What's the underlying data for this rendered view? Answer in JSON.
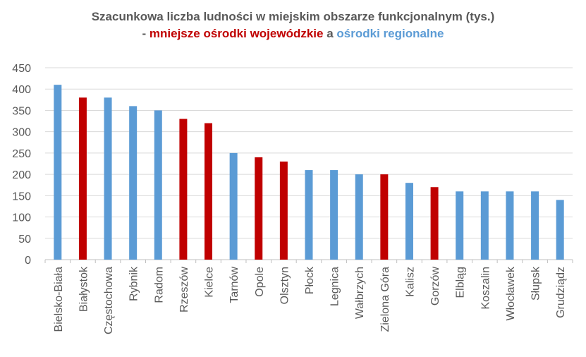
{
  "chart_data": {
    "type": "bar",
    "title": "Szacunkowa liczba ludności w miejskim obszarze funkcjonalnym (tys.)",
    "subtitle": {
      "prefix": "- ",
      "red_text": "mniejsze ośrodki wojewódzkie",
      "connector": " a ",
      "blue_text": "ośrodki regionalne"
    },
    "colors": {
      "red": "#C00000",
      "blue": "#5B9BD5"
    },
    "categories": [
      "Bielsko-Biała",
      "Białystok",
      "Częstochowa",
      "Rybnik",
      "Radom",
      "Rzeszów",
      "Kielce",
      "Tarnów",
      "Opole",
      "Olsztyn",
      "Płock",
      "Legnica",
      "Wałbrzych",
      "Zielona Góra",
      "Kalisz",
      "Gorzów",
      "Elbląg",
      "Koszalin",
      "Włocławek",
      "Słupsk",
      "Grudziądz"
    ],
    "values": [
      410,
      380,
      380,
      360,
      350,
      330,
      320,
      250,
      240,
      230,
      210,
      210,
      200,
      200,
      180,
      170,
      160,
      160,
      160,
      160,
      140
    ],
    "group": [
      "blue",
      "red",
      "blue",
      "blue",
      "blue",
      "red",
      "red",
      "blue",
      "red",
      "red",
      "blue",
      "blue",
      "blue",
      "red",
      "blue",
      "red",
      "blue",
      "blue",
      "blue",
      "blue",
      "blue"
    ],
    "ylim": [
      0,
      450
    ],
    "yticks": [
      0,
      50,
      100,
      150,
      200,
      250,
      300,
      350,
      400,
      450
    ],
    "grid": true,
    "xlabel": "",
    "ylabel": ""
  }
}
